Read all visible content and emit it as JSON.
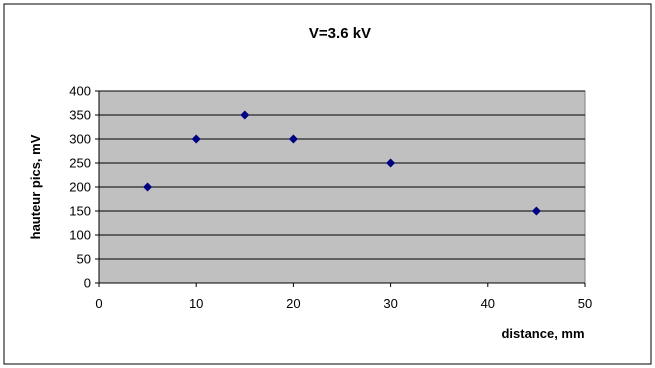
{
  "chart_data": {
    "type": "scatter",
    "title": "V=3.6 kV",
    "xlabel": "distance, mm",
    "ylabel": "hauteur pics, mV",
    "xlim": [
      0,
      50
    ],
    "ylim": [
      0,
      400
    ],
    "xticks": [
      0,
      10,
      20,
      30,
      40,
      50
    ],
    "yticks": [
      0,
      50,
      100,
      150,
      200,
      250,
      300,
      350,
      400
    ],
    "grid": "horizontal",
    "legend": "none",
    "series": [
      {
        "marker": "diamond",
        "color": "#000080",
        "points": [
          {
            "x": 5,
            "y": 200
          },
          {
            "x": 10,
            "y": 300
          },
          {
            "x": 15,
            "y": 350
          },
          {
            "x": 20,
            "y": 300
          },
          {
            "x": 30,
            "y": 250
          },
          {
            "x": 45,
            "y": 150
          }
        ]
      }
    ],
    "colors": {
      "plot_background": "#C0C0C0",
      "gridline": "#000000",
      "frame": "#000000"
    }
  }
}
